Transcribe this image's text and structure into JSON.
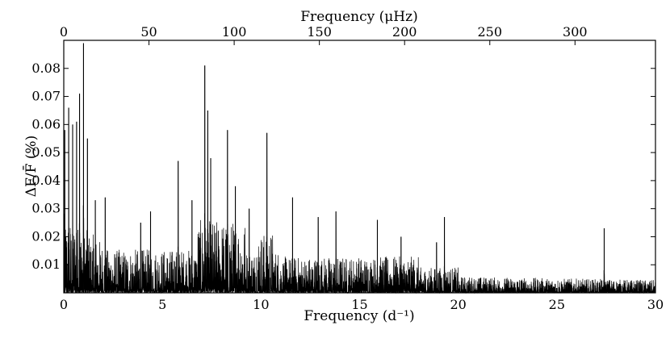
{
  "chart_data": {
    "type": "line",
    "xlabel": "Frequency (d⁻¹)",
    "x2label": "Frequency (μHz)",
    "ylabel": "ΔF/F̄ (%)",
    "xlim": [
      0,
      30
    ],
    "ylim": [
      0,
      0.09
    ],
    "x2lim": [
      0,
      347.22
    ],
    "x_ticks": [
      "0",
      "5",
      "10",
      "15",
      "20",
      "25",
      "30"
    ],
    "x2_ticks": [
      "0",
      "50",
      "100",
      "150",
      "200",
      "250",
      "300"
    ],
    "y_ticks": [
      "0.01",
      "0.02",
      "0.03",
      "0.04",
      "0.05",
      "0.06",
      "0.07",
      "0.08"
    ],
    "grid": false,
    "line_color": "#000000",
    "peaks": [
      {
        "x": 0.05,
        "y": 0.058
      },
      {
        "x": 0.25,
        "y": 0.066
      },
      {
        "x": 0.45,
        "y": 0.06
      },
      {
        "x": 0.65,
        "y": 0.061
      },
      {
        "x": 0.8,
        "y": 0.071
      },
      {
        "x": 1.0,
        "y": 0.089
      },
      {
        "x": 1.2,
        "y": 0.055
      },
      {
        "x": 1.6,
        "y": 0.033
      },
      {
        "x": 2.1,
        "y": 0.034
      },
      {
        "x": 3.9,
        "y": 0.025
      },
      {
        "x": 4.4,
        "y": 0.029
      },
      {
        "x": 5.8,
        "y": 0.047
      },
      {
        "x": 6.5,
        "y": 0.033
      },
      {
        "x": 7.15,
        "y": 0.081
      },
      {
        "x": 7.3,
        "y": 0.065
      },
      {
        "x": 7.45,
        "y": 0.048
      },
      {
        "x": 8.3,
        "y": 0.058
      },
      {
        "x": 8.7,
        "y": 0.038
      },
      {
        "x": 9.4,
        "y": 0.03
      },
      {
        "x": 10.3,
        "y": 0.057
      },
      {
        "x": 11.6,
        "y": 0.034
      },
      {
        "x": 12.9,
        "y": 0.027
      },
      {
        "x": 13.8,
        "y": 0.029
      },
      {
        "x": 15.9,
        "y": 0.026
      },
      {
        "x": 17.1,
        "y": 0.02
      },
      {
        "x": 18.9,
        "y": 0.018
      },
      {
        "x": 19.3,
        "y": 0.027
      },
      {
        "x": 27.4,
        "y": 0.023
      }
    ]
  }
}
